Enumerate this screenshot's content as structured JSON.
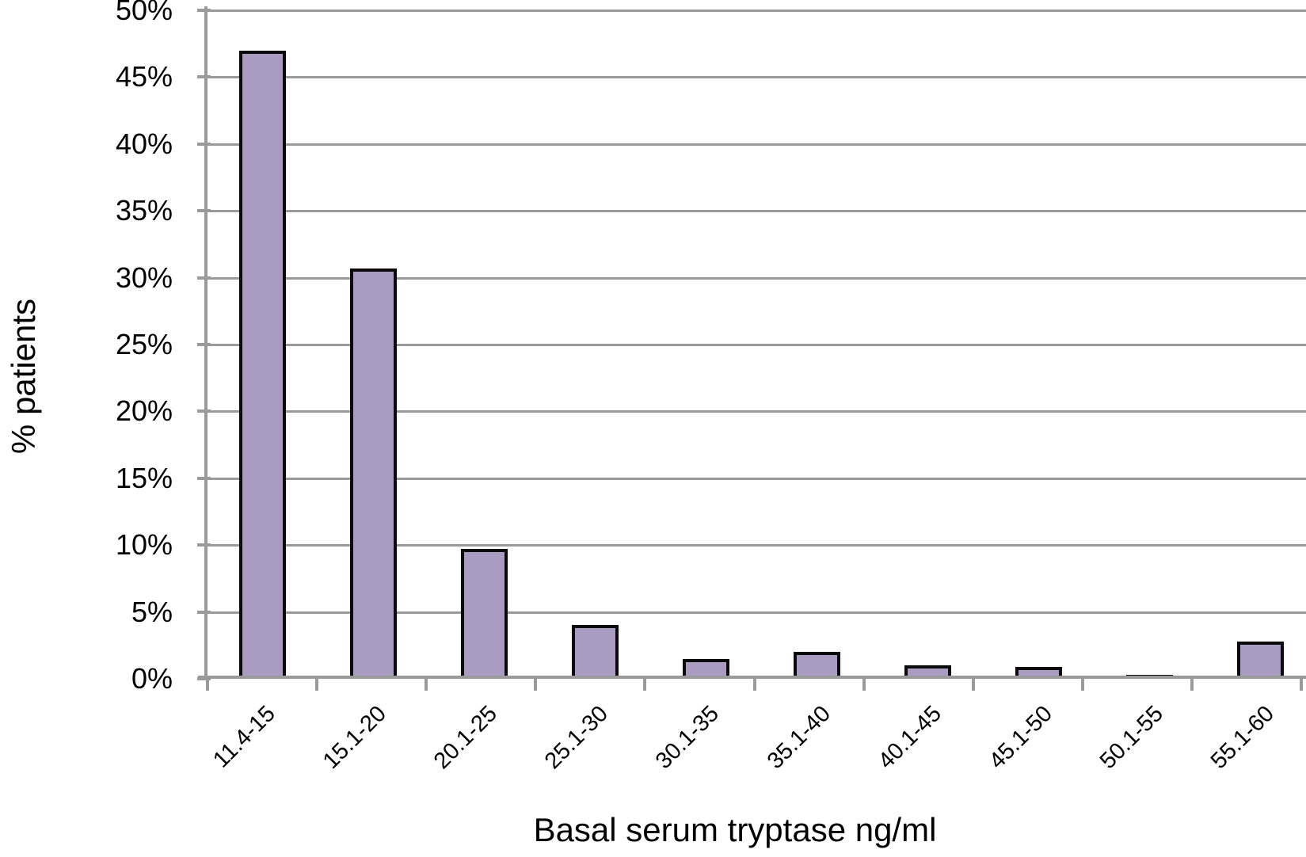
{
  "chart_data": {
    "type": "bar",
    "title": "",
    "categories": [
      "11.4-15",
      "15.1-20",
      "20.1-25",
      "25.1-30",
      "30.1-35",
      "35.1-40",
      "40.1-45",
      "45.1-50",
      "50.1-55",
      "55.1-60"
    ],
    "values": [
      47,
      30.7,
      9.7,
      4,
      1.5,
      2,
      1,
      0.9,
      0.3,
      2.8
    ],
    "xlabel": "Basal serum tryptase ng/ml",
    "ylabel": "% patients",
    "ylim": [
      0,
      50
    ],
    "ytick_step": 5,
    "ytick_labels": [
      "0%",
      "5%",
      "10%",
      "15%",
      "20%",
      "25%",
      "30%",
      "35%",
      "40%",
      "45%",
      "50%"
    ],
    "grid": true,
    "legend_position": "none",
    "colors": {
      "bar_fill": "#a89cc1",
      "bar_border": "#0a0a0a",
      "gridline": "#9a9a9a",
      "axis": "#9a9a9a",
      "text": "#000000",
      "background": "#ffffff"
    }
  }
}
